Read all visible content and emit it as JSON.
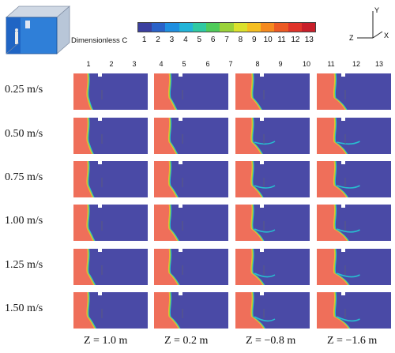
{
  "colorbar": {
    "title": "Dimensionless C",
    "ticks": [
      "1",
      "2",
      "3",
      "4",
      "5",
      "6",
      "7",
      "8",
      "9",
      "10",
      "11",
      "12",
      "13"
    ],
    "colors": [
      "#3b3f9f",
      "#2a62c8",
      "#1f8fe0",
      "#22b4d8",
      "#2fc9a2",
      "#4fcb5a",
      "#9ad23a",
      "#dbe12d",
      "#f5bf22",
      "#f58a1f",
      "#ec5a24",
      "#e0342a",
      "#c81f2a"
    ]
  },
  "axis_triad": {
    "y": "Y",
    "x": "X",
    "z": "Z"
  },
  "column_numbers": [
    "1",
    "2",
    "3",
    "4",
    "5",
    "6",
    "7",
    "8",
    "9",
    "10",
    "11",
    "12",
    "13"
  ],
  "rows": [
    "0.25 m/s",
    "0.50 m/s",
    "0.75 m/s",
    "1.00 m/s",
    "1.25 m/s",
    "1.50 m/s"
  ],
  "columns": [
    "Z = 1.0 m",
    "Z = 0.2 m",
    "Z = −0.8 m",
    "Z = −1.6 m"
  ],
  "field_colors": {
    "high": "#ef6f5a",
    "low": "#4a4aa6",
    "mid1": "#f2b632",
    "mid2": "#9ad23a",
    "mid3": "#27bfd0"
  }
}
